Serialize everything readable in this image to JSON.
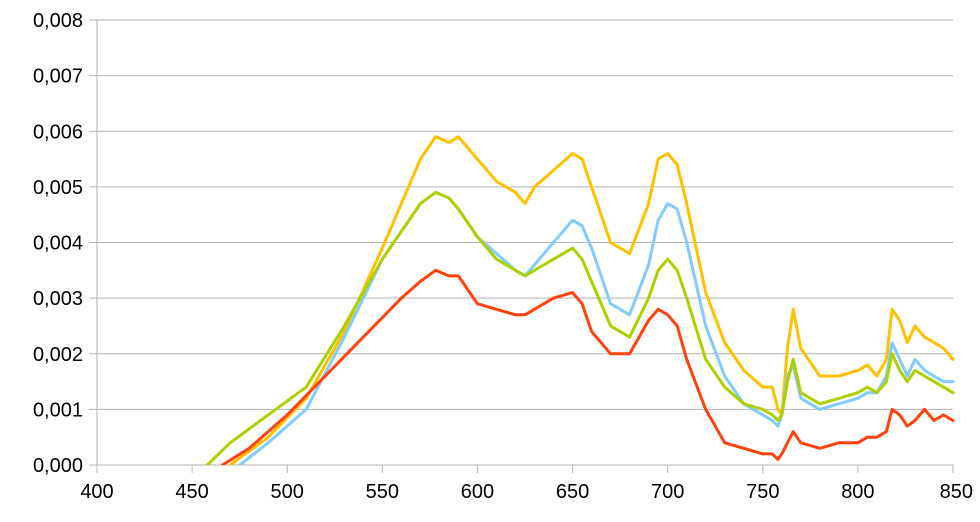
{
  "chart_data": {
    "type": "line",
    "title": "",
    "xlabel": "",
    "ylabel": "",
    "xlim": [
      400,
      850
    ],
    "ylim": [
      0,
      0.008
    ],
    "grid": true,
    "legend": "none",
    "x_ticks": [
      400,
      450,
      500,
      550,
      600,
      650,
      700,
      750,
      800,
      850
    ],
    "x_tick_labels": [
      "400",
      "450",
      "500",
      "550",
      "600",
      "650",
      "700",
      "750",
      "800",
      "850"
    ],
    "y_ticks": [
      0,
      0.001,
      0.002,
      0.003,
      0.004,
      0.005,
      0.006,
      0.007,
      0.008
    ],
    "y_tick_labels": [
      "0,000",
      "0,001",
      "0,002",
      "0,003",
      "0,004",
      "0,005",
      "0,006",
      "0,007",
      "0,008"
    ],
    "series": [
      {
        "color": "#ffc000",
        "x": [
          470,
          490,
          510,
          530,
          550,
          560,
          570,
          578,
          585,
          590,
          600,
          610,
          620,
          625,
          630,
          640,
          650,
          655,
          660,
          670,
          680,
          690,
          695,
          700,
          705,
          710,
          720,
          730,
          740,
          750,
          755,
          758,
          760,
          763,
          766,
          770,
          780,
          790,
          800,
          805,
          810,
          815,
          818,
          822,
          826,
          830,
          835,
          840,
          845,
          850
        ],
        "y": [
          0,
          0.0005,
          0.0012,
          0.0024,
          0.0039,
          0.0047,
          0.0055,
          0.0059,
          0.0058,
          0.0059,
          0.0055,
          0.0051,
          0.0049,
          0.0047,
          0.005,
          0.0053,
          0.0056,
          0.0055,
          0.005,
          0.004,
          0.0038,
          0.0047,
          0.0055,
          0.0056,
          0.0054,
          0.0047,
          0.0031,
          0.0022,
          0.0017,
          0.0014,
          0.0014,
          0.001,
          0.0009,
          0.0021,
          0.0028,
          0.0021,
          0.0016,
          0.0016,
          0.0017,
          0.0018,
          0.0016,
          0.0019,
          0.0028,
          0.0026,
          0.0022,
          0.0025,
          0.0023,
          0.0022,
          0.0021,
          0.0019
        ]
      },
      {
        "color": "#83caff",
        "x": [
          475,
          490,
          510,
          530,
          550,
          560,
          570,
          578,
          585,
          590,
          600,
          610,
          620,
          625,
          630,
          640,
          650,
          655,
          660,
          670,
          680,
          690,
          695,
          700,
          705,
          710,
          720,
          730,
          740,
          750,
          755,
          758,
          760,
          763,
          766,
          770,
          780,
          790,
          800,
          805,
          810,
          815,
          818,
          822,
          826,
          830,
          835,
          840,
          845,
          850
        ],
        "y": [
          0,
          0.0004,
          0.001,
          0.0023,
          0.0037,
          0.0042,
          0.0047,
          0.0049,
          0.0048,
          0.0046,
          0.0041,
          0.0038,
          0.0035,
          0.0034,
          0.0036,
          0.004,
          0.0044,
          0.0043,
          0.0039,
          0.0029,
          0.0027,
          0.0036,
          0.0044,
          0.0047,
          0.0046,
          0.004,
          0.0025,
          0.0016,
          0.0011,
          0.0009,
          0.0008,
          0.0007,
          0.0009,
          0.0016,
          0.0018,
          0.0012,
          0.001,
          0.0011,
          0.0012,
          0.0013,
          0.0013,
          0.0016,
          0.0022,
          0.0019,
          0.0016,
          0.0019,
          0.0017,
          0.0016,
          0.0015,
          0.0015
        ]
      },
      {
        "color": "#aecf00",
        "x": [
          458,
          470,
          490,
          510,
          530,
          550,
          560,
          570,
          578,
          585,
          590,
          600,
          610,
          620,
          625,
          630,
          640,
          650,
          655,
          660,
          670,
          680,
          690,
          695,
          700,
          705,
          710,
          720,
          730,
          740,
          750,
          755,
          758,
          760,
          763,
          766,
          770,
          780,
          790,
          800,
          805,
          810,
          815,
          818,
          822,
          826,
          830,
          835,
          840,
          845,
          850
        ],
        "y": [
          0,
          0.0004,
          0.0009,
          0.0014,
          0.0025,
          0.0037,
          0.0042,
          0.0047,
          0.0049,
          0.0048,
          0.0046,
          0.0041,
          0.0037,
          0.0035,
          0.0034,
          0.0035,
          0.0037,
          0.0039,
          0.0037,
          0.0033,
          0.0025,
          0.0023,
          0.003,
          0.0035,
          0.0037,
          0.0035,
          0.003,
          0.0019,
          0.0014,
          0.0011,
          0.001,
          0.0009,
          0.0008,
          0.0009,
          0.0015,
          0.0019,
          0.0013,
          0.0011,
          0.0012,
          0.0013,
          0.0014,
          0.0013,
          0.0015,
          0.002,
          0.0017,
          0.0015,
          0.0017,
          0.0016,
          0.0015,
          0.0014,
          0.0013
        ]
      },
      {
        "color": "#ff420e",
        "x": [
          466,
          480,
          500,
          520,
          540,
          560,
          570,
          578,
          585,
          590,
          600,
          610,
          620,
          625,
          630,
          640,
          650,
          655,
          660,
          670,
          680,
          690,
          695,
          700,
          705,
          710,
          720,
          730,
          740,
          750,
          755,
          758,
          760,
          763,
          766,
          770,
          780,
          790,
          800,
          805,
          810,
          815,
          818,
          822,
          826,
          830,
          835,
          840,
          845,
          850
        ],
        "y": [
          0,
          0.0003,
          0.0009,
          0.0016,
          0.0023,
          0.003,
          0.0033,
          0.0035,
          0.0034,
          0.0034,
          0.0029,
          0.0028,
          0.0027,
          0.0027,
          0.0028,
          0.003,
          0.0031,
          0.0029,
          0.0024,
          0.002,
          0.002,
          0.0026,
          0.0028,
          0.0027,
          0.0025,
          0.0019,
          0.001,
          0.0004,
          0.0003,
          0.0002,
          0.0002,
          0.0001,
          0.0002,
          0.0004,
          0.0006,
          0.0004,
          0.0003,
          0.0004,
          0.0004,
          0.0005,
          0.0005,
          0.0006,
          0.001,
          0.0009,
          0.0007,
          0.0008,
          0.001,
          0.0008,
          0.0009,
          0.0008
        ]
      }
    ]
  }
}
